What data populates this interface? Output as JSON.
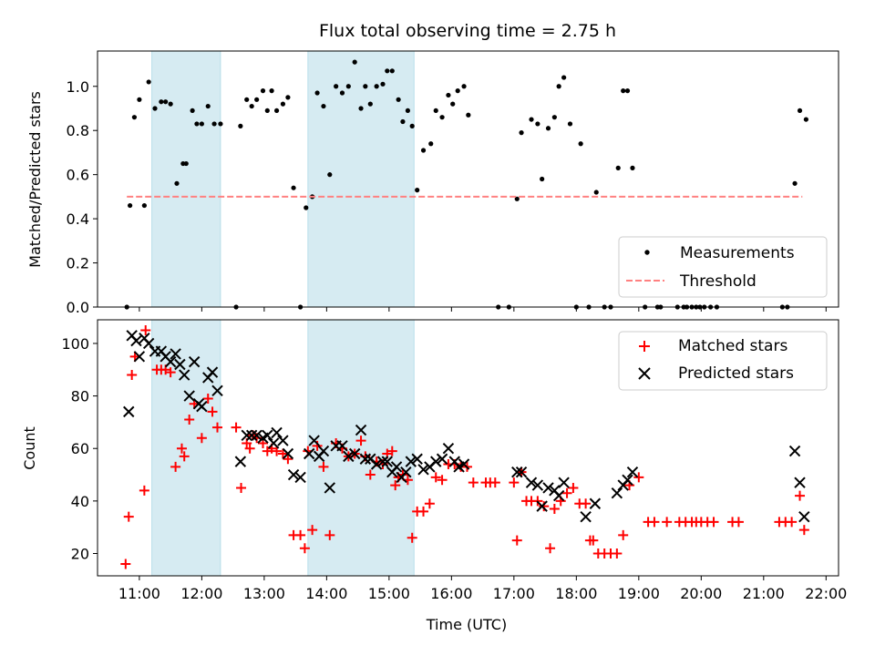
{
  "chart_data": [
    {
      "type": "scatter",
      "title": "Flux total observing time = 2.75 h",
      "xlabel": "",
      "ylabel": "Matched/Predicted stars",
      "xlim": [
        10.33,
        22.2
      ],
      "ylim": [
        0,
        1.16
      ],
      "yticks": [
        0.0,
        0.2,
        0.4,
        0.6,
        0.8,
        1.0
      ],
      "ytick_labels": [
        "0.0",
        "0.2",
        "0.4",
        "0.6",
        "0.8",
        "1.0"
      ],
      "shaded_intervals": [
        [
          11.2,
          12.3
        ],
        [
          13.7,
          15.4
        ]
      ],
      "legend_position": "lower-right",
      "series": [
        {
          "name": "Measurements",
          "marker": "dot",
          "color": "#000000",
          "x": [
            10.8,
            10.85,
            10.92,
            11.0,
            11.08,
            11.15,
            11.25,
            11.35,
            11.42,
            11.5,
            11.6,
            11.7,
            11.75,
            11.85,
            11.92,
            12.0,
            12.1,
            12.2,
            12.3,
            12.55,
            12.62,
            12.72,
            12.8,
            12.88,
            12.98,
            13.05,
            13.12,
            13.2,
            13.3,
            13.38,
            13.47,
            13.58,
            13.67,
            13.77,
            13.85,
            13.95,
            14.05,
            14.15,
            14.25,
            14.35,
            14.45,
            14.55,
            14.62,
            14.7,
            14.8,
            14.9,
            14.97,
            15.05,
            15.15,
            15.22,
            15.3,
            15.37,
            15.45,
            15.55,
            15.67,
            15.75,
            15.85,
            15.95,
            16.02,
            16.1,
            16.2,
            16.27,
            16.75,
            16.92,
            17.05,
            17.12,
            17.28,
            17.38,
            17.45,
            17.55,
            17.65,
            17.72,
            17.8,
            17.9,
            18.0,
            18.07,
            18.2,
            18.32,
            18.45,
            18.55,
            18.67,
            18.75,
            18.82,
            18.9,
            19.1,
            19.3,
            19.35,
            19.62,
            19.72,
            19.77,
            19.85,
            19.92,
            19.98,
            20.05,
            20.15,
            20.25,
            21.3,
            21.38,
            21.5,
            21.58,
            21.68
          ],
          "y": [
            0.0,
            0.46,
            0.86,
            0.94,
            0.46,
            1.02,
            0.9,
            0.93,
            0.93,
            0.92,
            0.56,
            0.65,
            0.65,
            0.89,
            0.83,
            0.83,
            0.91,
            0.83,
            0.83,
            0.0,
            0.82,
            0.94,
            0.91,
            0.94,
            0.98,
            0.89,
            0.98,
            0.89,
            0.92,
            0.95,
            0.54,
            0.0,
            0.45,
            0.5,
            0.97,
            0.91,
            0.6,
            1.0,
            0.97,
            1.0,
            1.11,
            0.9,
            1.0,
            0.92,
            1.0,
            1.01,
            1.07,
            1.07,
            0.94,
            0.84,
            0.89,
            0.82,
            0.53,
            0.71,
            0.74,
            0.89,
            0.86,
            0.96,
            0.92,
            0.98,
            1.0,
            0.87,
            0.0,
            0.0,
            0.49,
            0.79,
            0.85,
            0.83,
            0.58,
            0.81,
            0.86,
            1.0,
            1.04,
            0.83,
            0.0,
            0.74,
            0.0,
            0.52,
            0.0,
            0.0,
            0.63,
            0.98,
            0.98,
            0.63,
            0.0,
            0.0,
            0.0,
            0.0,
            0.0,
            0.0,
            0.0,
            0.0,
            0.0,
            0.0,
            0.0,
            0.0,
            0.0,
            0.0,
            0.56,
            0.89,
            0.85
          ]
        },
        {
          "name": "Threshold",
          "style": "dashed-line",
          "color": "#ff8080",
          "x": [
            10.8,
            21.62
          ],
          "y": [
            0.5,
            0.5
          ]
        }
      ]
    },
    {
      "type": "scatter",
      "title": "",
      "xlabel": "Time (UTC)",
      "ylabel": "Count",
      "xlim": [
        10.33,
        22.2
      ],
      "ylim": [
        11.5,
        109
      ],
      "yticks": [
        20,
        40,
        60,
        80,
        100
      ],
      "ytick_labels": [
        "20",
        "40",
        "60",
        "80",
        "100"
      ],
      "xticks": [
        11,
        12,
        13,
        14,
        15,
        16,
        17,
        18,
        19,
        20,
        21,
        22
      ],
      "xtick_labels": [
        "11:00",
        "12:00",
        "13:00",
        "14:00",
        "15:00",
        "16:00",
        "17:00",
        "18:00",
        "19:00",
        "20:00",
        "21:00",
        "22:00"
      ],
      "shaded_intervals": [
        [
          11.2,
          12.3
        ],
        [
          13.7,
          15.4
        ]
      ],
      "legend_position": "upper-right",
      "series": [
        {
          "name": "Matched stars",
          "marker": "plus",
          "color": "#ff0000",
          "x": [
            10.78,
            10.83,
            10.88,
            10.93,
            11.08,
            11.1,
            11.28,
            11.35,
            11.42,
            11.5,
            11.58,
            11.68,
            11.72,
            11.8,
            11.88,
            12.0,
            12.1,
            12.17,
            12.25,
            12.55,
            12.63,
            12.72,
            12.77,
            12.82,
            12.88,
            12.98,
            13.05,
            13.12,
            13.2,
            13.3,
            13.38,
            13.47,
            13.58,
            13.65,
            13.7,
            13.77,
            13.85,
            13.95,
            14.05,
            14.15,
            14.25,
            14.35,
            14.45,
            14.55,
            14.62,
            14.7,
            14.8,
            14.9,
            14.97,
            15.05,
            15.1,
            15.15,
            15.22,
            15.3,
            15.37,
            15.45,
            15.55,
            15.65,
            15.75,
            15.85,
            15.95,
            16.05,
            16.15,
            16.25,
            16.35,
            16.55,
            16.62,
            16.7,
            17.0,
            17.05,
            17.12,
            17.2,
            17.28,
            17.38,
            17.48,
            17.58,
            17.65,
            17.75,
            17.85,
            17.95,
            18.05,
            18.15,
            18.22,
            18.27,
            18.35,
            18.45,
            18.55,
            18.65,
            18.75,
            18.85,
            19.0,
            19.15,
            19.25,
            19.45,
            19.65,
            19.75,
            19.85,
            19.92,
            20.0,
            20.1,
            20.2,
            20.5,
            20.6,
            21.25,
            21.35,
            21.45,
            21.58,
            21.65
          ],
          "y": [
            16,
            34,
            88,
            95,
            44,
            105,
            90,
            90,
            90,
            89,
            53,
            60,
            57,
            71,
            77,
            64,
            79,
            74,
            68,
            68,
            45,
            62,
            60,
            65,
            64,
            62,
            59,
            60,
            59,
            58,
            56,
            27,
            27,
            22,
            59,
            29,
            61,
            53,
            27,
            62,
            60,
            57,
            58,
            63,
            57,
            50,
            55,
            54,
            58,
            59,
            46,
            49,
            50,
            48,
            26,
            36,
            36,
            39,
            49,
            48,
            54,
            54,
            53,
            53,
            47,
            47,
            47,
            47,
            47,
            25,
            51,
            40,
            40,
            40,
            38,
            22,
            37,
            40,
            43,
            45,
            39,
            39,
            25,
            25,
            20,
            20,
            20,
            20,
            27,
            46,
            49,
            32,
            32,
            32,
            32,
            32,
            32,
            32,
            32,
            32,
            32,
            32,
            32,
            32,
            32,
            32,
            42,
            29
          ]
        },
        {
          "name": "Predicted stars",
          "marker": "x",
          "color": "#000000",
          "x": [
            10.83,
            10.88,
            10.95,
            11.0,
            11.08,
            11.15,
            11.25,
            11.35,
            11.42,
            11.5,
            11.58,
            11.65,
            11.72,
            11.8,
            11.88,
            11.95,
            12.0,
            12.1,
            12.17,
            12.25,
            12.62,
            12.72,
            12.8,
            12.88,
            12.98,
            13.05,
            13.15,
            13.2,
            13.3,
            13.38,
            13.47,
            13.58,
            13.72,
            13.8,
            13.88,
            13.95,
            14.05,
            14.15,
            14.25,
            14.35,
            14.45,
            14.55,
            14.62,
            14.7,
            14.8,
            14.9,
            14.97,
            15.05,
            15.12,
            15.2,
            15.27,
            15.35,
            15.45,
            15.55,
            15.65,
            15.75,
            15.85,
            15.95,
            16.05,
            16.12,
            16.2,
            17.05,
            17.12,
            17.28,
            17.38,
            17.45,
            17.55,
            17.65,
            17.72,
            17.8,
            18.15,
            18.3,
            18.65,
            18.75,
            18.82,
            18.9,
            21.5,
            21.58,
            21.65
          ],
          "y": [
            74,
            103,
            101,
            95,
            102,
            100,
            97,
            97,
            95,
            93,
            96,
            92,
            88,
            80,
            93,
            77,
            76,
            87,
            89,
            82,
            55,
            65,
            65,
            65,
            64,
            65,
            62,
            66,
            63,
            58,
            50,
            49,
            58,
            63,
            57,
            59,
            45,
            61,
            61,
            57,
            58,
            67,
            56,
            56,
            54,
            55,
            55,
            51,
            53,
            49,
            51,
            55,
            56,
            52,
            53,
            55,
            56,
            60,
            55,
            53,
            54,
            51,
            51,
            47,
            46,
            38,
            45,
            44,
            42,
            47,
            34,
            39,
            43,
            46,
            48,
            51,
            59,
            47,
            34
          ]
        }
      ]
    }
  ]
}
